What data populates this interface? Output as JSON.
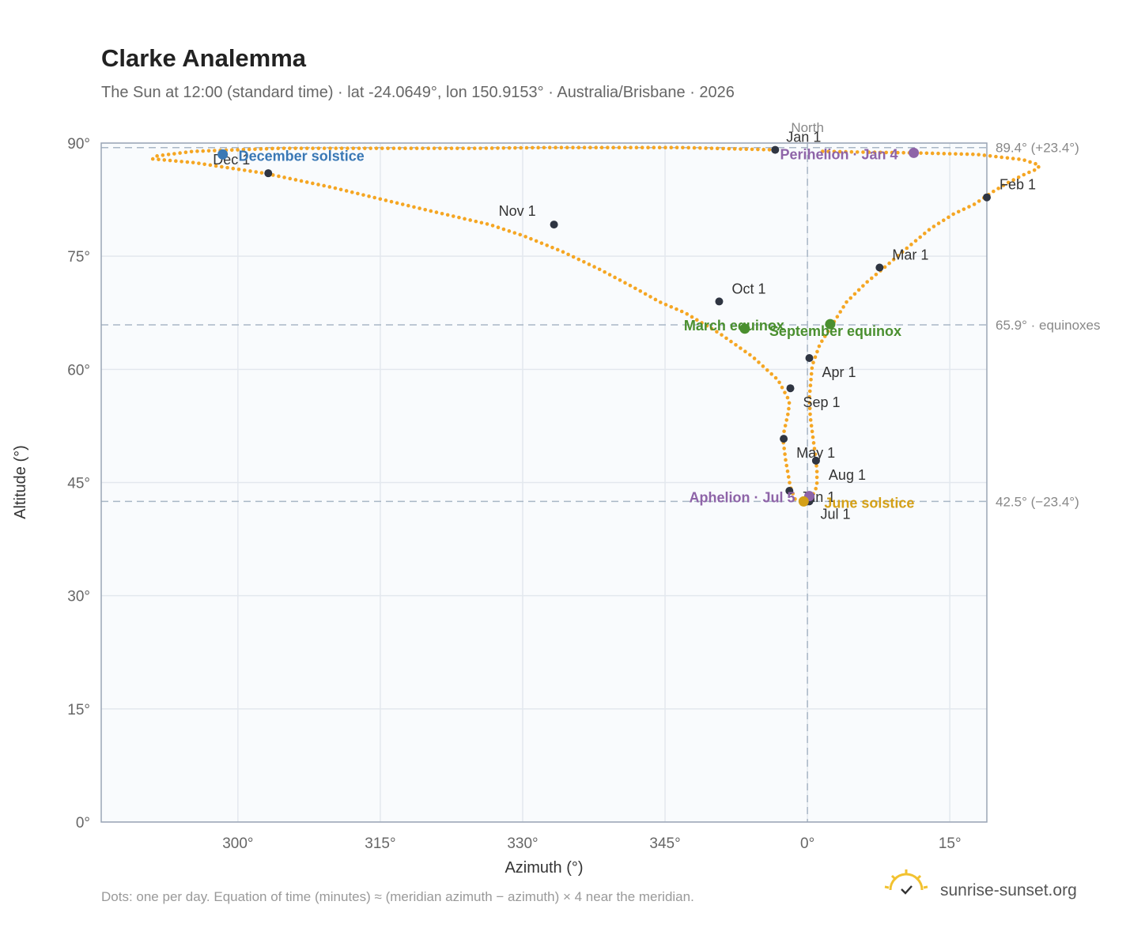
{
  "chart_data": {
    "type": "scatter",
    "title": "Clarke Analemma",
    "subtitle": "The Sun at 12:00 (standard time) · lat -24.0649°, lon 150.9153° · Australia/Brisbane · 2026",
    "xlabel": "Azimuth (°)",
    "ylabel": "Altitude (°)",
    "xlim": [
      285.6,
      18.9
    ],
    "ylim": [
      0,
      90
    ],
    "x_ticks": [
      {
        "value": 300,
        "label": "300°"
      },
      {
        "value": 315,
        "label": "315°"
      },
      {
        "value": 330,
        "label": "330°"
      },
      {
        "value": 345,
        "label": "345°"
      },
      {
        "value": 0,
        "label": "0°"
      },
      {
        "value": 15,
        "label": "15°"
      }
    ],
    "y_ticks": [
      {
        "value": 0,
        "label": "0°"
      },
      {
        "value": 15,
        "label": "15°"
      },
      {
        "value": 30,
        "label": "30°"
      },
      {
        "value": 45,
        "label": "45°"
      },
      {
        "value": 60,
        "label": "60°"
      },
      {
        "value": 75,
        "label": "75°"
      },
      {
        "value": 90,
        "label": "90°"
      }
    ],
    "grid": true,
    "north_label": "North",
    "reference_lines": [
      {
        "altitude": 89.4,
        "label": "89.4° (+23.4°)"
      },
      {
        "altitude": 65.9,
        "label": "65.9° · equinoxes"
      },
      {
        "altitude": 42.5,
        "label": "42.5° (−23.4°)"
      }
    ],
    "series": [
      {
        "color": "#f5a623",
        "points": [
          [
            356.6,
            89.1
          ],
          [
            346.8,
            89.4
          ],
          [
            339.3,
            89.4
          ],
          [
            332.5,
            89.4
          ],
          [
            325.1,
            89.3
          ],
          [
            318.7,
            89.3
          ],
          [
            310.8,
            89.3
          ],
          [
            304.3,
            89.3
          ],
          [
            299.8,
            89.1
          ],
          [
            295.3,
            88.9
          ],
          [
            291.5,
            88.3
          ],
          [
            291.0,
            87.9
          ],
          [
            295.4,
            87.4
          ],
          [
            302.8,
            86.0
          ],
          [
            310.0,
            84.1
          ],
          [
            315.6,
            82.4
          ],
          [
            320.3,
            81.0
          ],
          [
            326.5,
            79.2
          ],
          [
            330.1,
            77.7
          ],
          [
            334.2,
            75.6
          ],
          [
            338.2,
            73.2
          ],
          [
            341.5,
            71.0
          ],
          [
            344.5,
            68.9
          ],
          [
            347.1,
            67.5
          ],
          [
            350.7,
            64.8
          ],
          [
            354.2,
            61.7
          ],
          [
            356.9,
            58.6
          ],
          [
            358.1,
            55.8
          ],
          [
            358.0,
            54.4
          ],
          [
            357.4,
            51.0
          ],
          [
            357.7,
            48.0
          ],
          [
            358.2,
            44.4
          ],
          [
            358.7,
            42.8
          ],
          [
            359.5,
            42.5
          ],
          [
            0.3,
            42.6
          ],
          [
            0.5,
            43.2
          ],
          [
            1.0,
            44.5
          ],
          [
            1.0,
            46.5
          ],
          [
            0.9,
            48.0
          ],
          [
            0.6,
            50.8
          ],
          [
            0.3,
            53.7
          ],
          [
            0.2,
            56.2
          ],
          [
            0.5,
            60.5
          ],
          [
            1.3,
            63.3
          ],
          [
            2.6,
            65.9
          ],
          [
            4.1,
            68.9
          ],
          [
            6.2,
            71.5
          ],
          [
            8.1,
            73.5
          ],
          [
            10.5,
            76.1
          ],
          [
            13.0,
            78.7
          ],
          [
            15.4,
            80.6
          ],
          [
            17.6,
            81.9
          ],
          [
            19.6,
            83.6
          ],
          [
            21.2,
            84.8
          ],
          [
            23.1,
            86.0
          ],
          [
            24.3,
            86.6
          ],
          [
            24.4,
            87.1
          ],
          [
            22.7,
            87.8
          ],
          [
            17.8,
            88.5
          ],
          [
            11.2,
            88.7
          ],
          [
            5.6,
            88.8
          ],
          [
            1.6,
            88.9
          ]
        ]
      }
    ],
    "month_markers": [
      {
        "label": "Jan 1",
        "az": 356.6,
        "alt": 89.1
      },
      {
        "label": "Feb 1",
        "az": 18.9,
        "alt": 82.8
      },
      {
        "label": "Mar 1",
        "az": 7.6,
        "alt": 73.5
      },
      {
        "label": "Apr 1",
        "az": 0.2,
        "alt": 61.5
      },
      {
        "label": "May 1",
        "az": 357.5,
        "alt": 50.8
      },
      {
        "label": "Jun 1",
        "az": 358.1,
        "alt": 43.9
      },
      {
        "label": "Jul 1",
        "az": 0.2,
        "alt": 42.5
      },
      {
        "label": "Aug 1",
        "az": 0.9,
        "alt": 47.9
      },
      {
        "label": "Sep 1",
        "az": 358.2,
        "alt": 57.5
      },
      {
        "label": "Oct 1",
        "az": 350.7,
        "alt": 69.0
      },
      {
        "label": "Nov 1",
        "az": 333.3,
        "alt": 79.2
      },
      {
        "label": "Dec 1",
        "az": 303.2,
        "alt": 86.0
      }
    ],
    "events": [
      {
        "label": "December solstice",
        "az": 298.4,
        "alt": 88.5,
        "color": "#3a78b5"
      },
      {
        "label": "Perihelion · Jan 4",
        "az": 11.2,
        "alt": 88.7,
        "color": "#8e64a8"
      },
      {
        "label": "March equinox",
        "az": 353.4,
        "alt": 65.4,
        "color": "#4a8f2f"
      },
      {
        "label": "September equinox",
        "az": 2.4,
        "alt": 66.0,
        "color": "#4a8f2f"
      },
      {
        "label": "Aphelion · Jul 5",
        "az": 0.2,
        "alt": 43.2,
        "color": "#8e64a8"
      },
      {
        "label": "June solstice",
        "az": 359.6,
        "alt": 42.5,
        "color": "#d4a017"
      }
    ]
  },
  "footnote": "Dots: one per day. Equation of time (minutes) ≈ (meridian azimuth − azimuth) × 4 near the meridian.",
  "brand": "sunrise-sunset.org"
}
